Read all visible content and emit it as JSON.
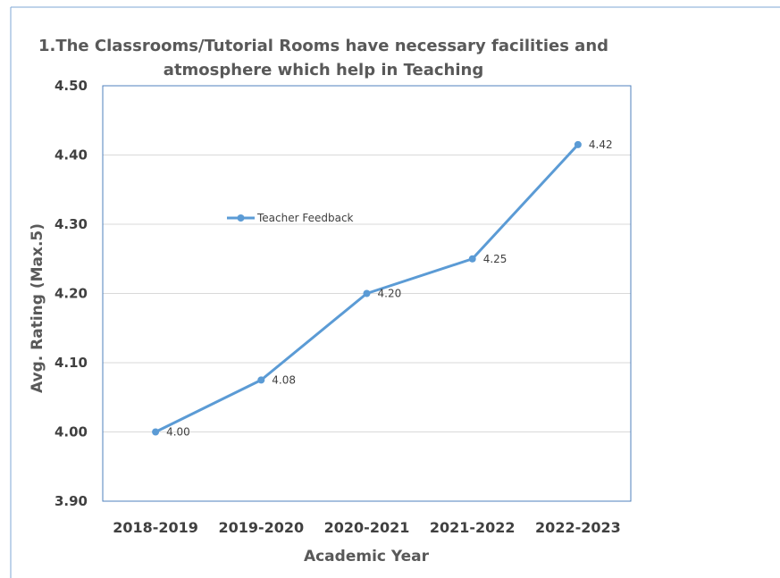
{
  "chart_data": {
    "type": "line",
    "title_lines": [
      "1.The Classrooms/Tutorial Rooms have necessary facilities and",
      "atmosphere which help in Teaching"
    ],
    "xlabel": "Academic Year",
    "ylabel": "Avg. Rating (Max.5)",
    "categories": [
      "2018-2019",
      "2019-2020",
      "2020-2021",
      "2021-2022",
      "2022-2023"
    ],
    "series": [
      {
        "name": "Teacher Feedback",
        "color": "#5b9bd5",
        "values": [
          4.0,
          4.075,
          4.2,
          4.25,
          4.415
        ],
        "data_labels": [
          "4.00",
          "4.08",
          "4.20",
          "4.25",
          "4.42"
        ]
      }
    ],
    "ylim": [
      3.9,
      4.5
    ],
    "yticks": [
      3.9,
      4.0,
      4.1,
      4.2,
      4.3,
      4.4,
      4.5
    ],
    "ytick_labels": [
      "3.90",
      "4.00",
      "4.10",
      "4.20",
      "4.30",
      "4.40",
      "4.50"
    ],
    "grid": true,
    "legend_position": "inside-upper-left"
  }
}
